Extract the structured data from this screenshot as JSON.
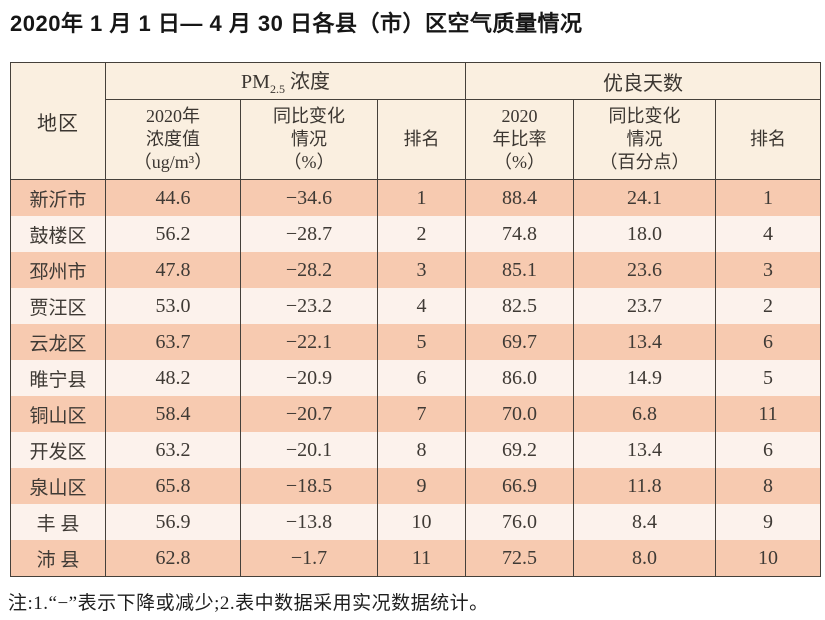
{
  "title": "2020年 1 月 1 日— 4 月 30 日各县（市）区空气质量情况",
  "table": {
    "headers": {
      "region": "地区",
      "pm_group": {
        "base": "PM",
        "sub": "2.5",
        "rest": " 浓度"
      },
      "days_group": "优良天数",
      "pm_value": "2020年\n浓度值\n（ug/m³）",
      "pm_change": "同比变化\n情况\n（%）",
      "pm_rank": "排名",
      "days_ratio": "2020\n年比率\n（%）",
      "days_change": "同比变化\n情况\n（百分点）",
      "days_rank": "排名"
    },
    "rows": [
      {
        "region": "新沂市",
        "pm_value": "44.6",
        "pm_change": "−34.6",
        "pm_rank": "1",
        "days_ratio": "88.4",
        "days_change": "24.1",
        "days_rank": "1"
      },
      {
        "region": "鼓楼区",
        "pm_value": "56.2",
        "pm_change": "−28.7",
        "pm_rank": "2",
        "days_ratio": "74.8",
        "days_change": "18.0",
        "days_rank": "4"
      },
      {
        "region": "邳州市",
        "pm_value": "47.8",
        "pm_change": "−28.2",
        "pm_rank": "3",
        "days_ratio": "85.1",
        "days_change": "23.6",
        "days_rank": "3"
      },
      {
        "region": "贾汪区",
        "pm_value": "53.0",
        "pm_change": "−23.2",
        "pm_rank": "4",
        "days_ratio": "82.5",
        "days_change": "23.7",
        "days_rank": "2"
      },
      {
        "region": "云龙区",
        "pm_value": "63.7",
        "pm_change": "−22.1",
        "pm_rank": "5",
        "days_ratio": "69.7",
        "days_change": "13.4",
        "days_rank": "6"
      },
      {
        "region": "睢宁县",
        "pm_value": "48.2",
        "pm_change": "−20.9",
        "pm_rank": "6",
        "days_ratio": "86.0",
        "days_change": "14.9",
        "days_rank": "5"
      },
      {
        "region": "铜山区",
        "pm_value": "58.4",
        "pm_change": "−20.7",
        "pm_rank": "7",
        "days_ratio": "70.0",
        "days_change": "6.8",
        "days_rank": "11"
      },
      {
        "region": "开发区",
        "pm_value": "63.2",
        "pm_change": "−20.1",
        "pm_rank": "8",
        "days_ratio": "69.2",
        "days_change": "13.4",
        "days_rank": "6"
      },
      {
        "region": "泉山区",
        "pm_value": "65.8",
        "pm_change": "−18.5",
        "pm_rank": "9",
        "days_ratio": "66.9",
        "days_change": "11.8",
        "days_rank": "8"
      },
      {
        "region": "丰 县",
        "pm_value": "56.9",
        "pm_change": "−13.8",
        "pm_rank": "10",
        "days_ratio": "76.0",
        "days_change": "8.4",
        "days_rank": "9"
      },
      {
        "region": "沛 县",
        "pm_value": "62.8",
        "pm_change": "−1.7",
        "pm_rank": "11",
        "days_ratio": "72.5",
        "days_change": "8.0",
        "days_rank": "10"
      }
    ]
  },
  "note": "注:1.“−”表示下降或减少;2.表中数据采用实况数据统计。",
  "colors": {
    "row_peach": "#f7cab0",
    "row_light": "#fcf2ec",
    "header_bg": "#faefe0",
    "border": "#45403a"
  }
}
